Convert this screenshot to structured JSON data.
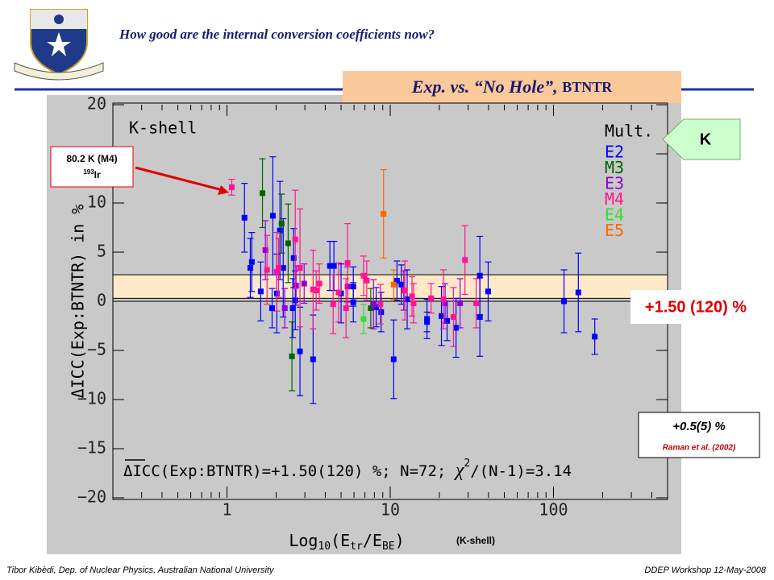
{
  "header": {
    "title": "How good are the internal conversion coefficients now?",
    "subtitle_main": "Exp. vs. “No Hole”, ",
    "subtitle_code": "BTNTR",
    "tag": "K"
  },
  "footer": {
    "left": "Tibor Kibèdi, Dep. of Nuclear Physics, Australian National University",
    "right": "DDEP Workshop 12-May-2008"
  },
  "chart_data": {
    "type": "scatter",
    "plot_label": "K-shell",
    "legend_title": "Mult.",
    "ylabel": "ΔICC(Exp:BTNTR) in %",
    "xlabel_parts": [
      "Log",
      "10",
      "(E",
      "tr",
      "/E",
      "BE",
      ")"
    ],
    "xlabel_note": "(K-shell)",
    "xscale": "log",
    "xlim": [
      0.2,
      500
    ],
    "xticks": [
      1,
      10,
      100
    ],
    "xminorticks": [
      0.2,
      0.3,
      0.4,
      0.5,
      0.6,
      0.7,
      0.8,
      0.9,
      2,
      3,
      4,
      5,
      6,
      7,
      8,
      9,
      20,
      30,
      40,
      50,
      60,
      70,
      80,
      90,
      200,
      300,
      400,
      500
    ],
    "ylim": [
      -20,
      20
    ],
    "yticks": [
      {
        "value": -20,
        "label": "−20"
      },
      {
        "value": -15,
        "label": "−15"
      },
      {
        "value": -10,
        "label": "−10"
      },
      {
        "value": -5,
        "label": "−5"
      },
      0,
      5,
      10,
      15,
      20
    ],
    "mean": 1.5,
    "mean_error": 1.2,
    "mean_label": "+1.50 (120) %",
    "formula_parts": [
      "ΔICC(Exp:BTNTR)=+1.50(120) %; N=72; ",
      "χ",
      "2",
      "/(N-1)=3.14"
    ],
    "reference": {
      "value_label": "+0.5(5) %",
      "source": "Raman et al. (2002)"
    },
    "callout": {
      "label": "80.2 K (M4)",
      "mass": "193",
      "element": "Ir"
    },
    "series": [
      {
        "name": "E2",
        "color": "#0000ff",
        "x": [
          1.28,
          1.39,
          1.42,
          1.61,
          1.91,
          2.02,
          2.11,
          2.21,
          1.89,
          2.53,
          2.62,
          2.8,
          3.37,
          2.56,
          4.27,
          4.52,
          5.0,
          5.94,
          5.94,
          8.8,
          8.2,
          10.5,
          11.0,
          11.7,
          12.7,
          16.8,
          16.8,
          20.6,
          22.3,
          25.3,
          35.4,
          35.4,
          39.8,
          116,
          142,
          179
        ],
        "values": [
          8.5,
          3.4,
          4.0,
          1.0,
          8.7,
          0.8,
          7.2,
          3.4,
          -0.7,
          -0.7,
          0.1,
          -5.1,
          -5.9,
          4.4,
          3.6,
          3.6,
          0.8,
          1.5,
          -0.1,
          -1.1,
          -0.6,
          -5.9,
          2.1,
          1.7,
          0.2,
          -1.8,
          -2.1,
          -1.5,
          -2.0,
          -2.7,
          2.6,
          -1.6,
          1.0,
          0.0,
          0.9,
          -3.6
        ],
        "errors": [
          3.5,
          3,
          3,
          3,
          6,
          4,
          5,
          5,
          2,
          3,
          3,
          4.5,
          4.5,
          3,
          2.5,
          2.5,
          3,
          2,
          2,
          2,
          2,
          4,
          2,
          2,
          3,
          2,
          1,
          3,
          2,
          3,
          4,
          4,
          3,
          3.2,
          4,
          1.8
        ]
      },
      {
        "name": "M3",
        "color": "#006400",
        "x": [
          1.65,
          2.16,
          2.37,
          2.5,
          7.6
        ],
        "values": [
          11.0,
          7.9,
          5.9,
          -5.6,
          -0.7
        ],
        "errors": [
          3.5,
          3,
          4,
          3.5,
          2
        ]
      },
      {
        "name": "E3",
        "color": "#9400d3",
        "x": [
          1.72,
          2.26,
          2.65,
          2.97,
          5.48,
          7.9,
          12.1,
          21.7,
          26.8
        ],
        "values": [
          5.2,
          -0.7,
          1.6,
          1.8,
          1.5,
          -0.3,
          1.1,
          -0.2,
          -0.2
        ],
        "errors": [
          3,
          2,
          2,
          2,
          2,
          2.5,
          2,
          2,
          2.5
        ]
      },
      {
        "name": "M4",
        "color": "#ff1493",
        "x": [
          1.07,
          1.76,
          2.02,
          2.07,
          2.62,
          2.8,
          3.37,
          3.52,
          3.68,
          4.47,
          4.83,
          5.36,
          5.48,
          6.87,
          7.18,
          8.7,
          12.3,
          13.6,
          13.9,
          17.8,
          21.2,
          24.4,
          28.7,
          33.6
        ],
        "values": [
          11.6,
          3.2,
          3.0,
          3.4,
          6.3,
          3.4,
          1.2,
          1.1,
          1.8,
          -0.3,
          0.9,
          -0.7,
          3.9,
          2.6,
          2.1,
          -0.3,
          1.1,
          0.5,
          -0.2,
          0.3,
          0.2,
          -1.6,
          4.2,
          -0.2
        ],
        "errors": [
          0.8,
          3.5,
          4,
          3,
          5,
          6,
          4,
          2,
          2,
          3,
          3,
          3,
          4,
          2,
          2,
          2,
          3,
          2,
          2,
          1.5,
          3,
          3,
          3.5,
          2.5
        ]
      },
      {
        "name": "E4",
        "color": "#33dd33",
        "x": [
          6.87
        ],
        "values": [
          -1.8
        ],
        "errors": [
          1.5
        ]
      },
      {
        "name": "E5",
        "color": "#ff6600",
        "x": [
          9.1,
          10.5
        ],
        "values": [
          8.9,
          1.7
        ],
        "errors": [
          4.5,
          1.5
        ]
      }
    ]
  }
}
